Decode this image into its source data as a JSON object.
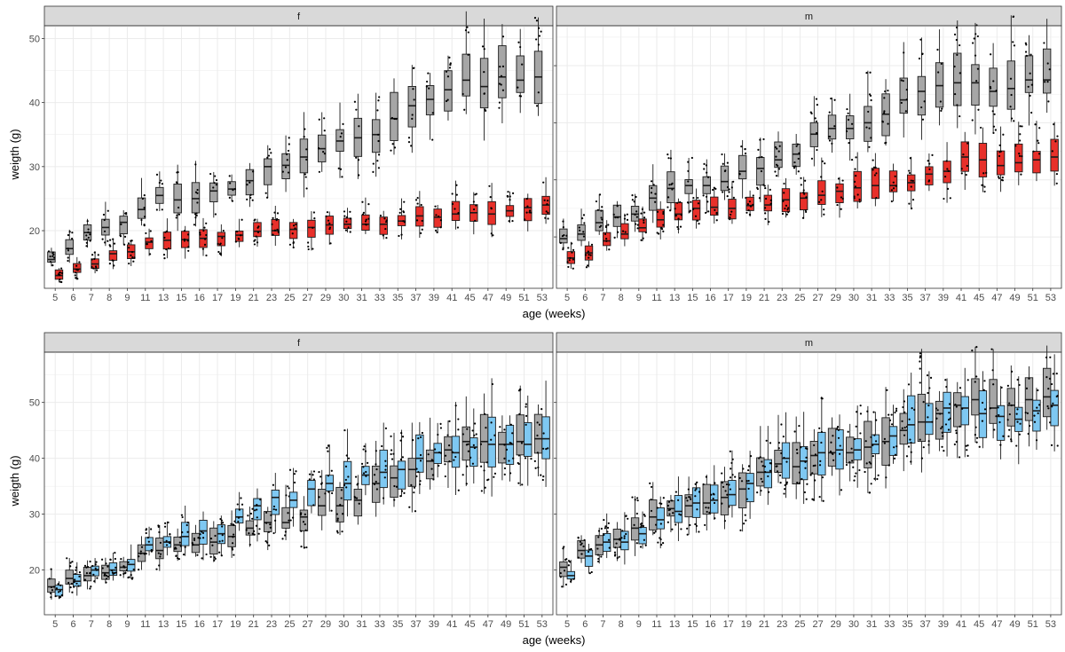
{
  "figure": {
    "top": {
      "xlabel": "age (weeks)",
      "ylabel": "weigth (g)"
    },
    "bottom": {
      "xlabel": "age (weeks)",
      "ylabel": "weigth (g)"
    }
  },
  "colors": {
    "grey_box": "#a6a6a6",
    "red_box": "#e8302a",
    "blue_box": "#7ec8f2",
    "strip": "#d9d9d9",
    "grid": "#ebebeb"
  },
  "chart_data": [
    {
      "type": "boxplot",
      "row": "top",
      "facet": "f",
      "xlabel": "age (weeks)",
      "ylabel": "weigth (g)",
      "ylim": [
        11,
        52
      ],
      "yticks": [
        20,
        30,
        40,
        50
      ],
      "categories": [
        "5",
        "6",
        "7",
        "8",
        "9",
        "11",
        "13",
        "15",
        "16",
        "17",
        "19",
        "21",
        "23",
        "25",
        "27",
        "29",
        "30",
        "31",
        "33",
        "35",
        "37",
        "39",
        "41",
        "45",
        "47",
        "49",
        "51",
        "53"
      ],
      "series": [
        {
          "color": "grey",
          "medians": [
            15.5,
            17.2,
            19.7,
            20.5,
            21.3,
            23.3,
            25.5,
            24.8,
            25.0,
            26.2,
            26.5,
            27.8,
            30.0,
            30.2,
            31.5,
            32.8,
            34.0,
            34.5,
            35.0,
            37.5,
            39.5,
            40.5,
            42.0,
            43.5,
            42.5,
            44.0,
            43.5,
            44.0
          ]
        },
        {
          "color": "red",
          "medians": [
            13.0,
            14.0,
            14.8,
            16.4,
            16.7,
            18.2,
            18.5,
            18.6,
            18.8,
            19.1,
            19.3,
            19.9,
            20.0,
            20.2,
            20.5,
            20.9,
            21.0,
            21.0,
            21.0,
            21.5,
            22.3,
            22.1,
            22.6,
            22.8,
            22.6,
            23.1,
            23.6,
            24.0
          ]
        }
      ]
    },
    {
      "type": "boxplot",
      "row": "top",
      "facet": "m",
      "xlabel": "age (weeks)",
      "ylabel": "weigth (g)",
      "ylim": [
        11,
        57
      ],
      "yticks": [
        20,
        30,
        40,
        50
      ],
      "categories": [
        "5",
        "6",
        "7",
        "8",
        "9",
        "11",
        "13",
        "15",
        "16",
        "17",
        "19",
        "21",
        "23",
        "25",
        "27",
        "29",
        "30",
        "31",
        "33",
        "35",
        "37",
        "39",
        "41",
        "45",
        "47",
        "49",
        "51",
        "53"
      ],
      "series": [
        {
          "color": "grey",
          "medians": [
            19.7,
            20.5,
            22.5,
            23.5,
            24.0,
            26.8,
            28.5,
            29.0,
            29.0,
            29.7,
            31.5,
            32.0,
            33.5,
            34.5,
            38.0,
            39.0,
            39.0,
            40.0,
            41.5,
            44.0,
            45.5,
            46.5,
            47.0,
            47.0,
            45.5,
            46.0,
            47.5,
            47.5
          ]
        },
        {
          "color": "red",
          "medians": [
            16.3,
            17.2,
            19.3,
            20.5,
            21.6,
            23.0,
            24.0,
            25.0,
            25.2,
            25.0,
            25.5,
            25.6,
            26.5,
            26.8,
            27.3,
            28.0,
            28.6,
            29.0,
            29.0,
            29.5,
            31.0,
            31.5,
            34.0,
            33.5,
            32.5,
            33.0,
            33.5,
            34.0
          ]
        }
      ]
    },
    {
      "type": "boxplot",
      "row": "bottom",
      "facet": "f",
      "xlabel": "age (weeks)",
      "ylabel": "weigth (g)",
      "ylim": [
        12,
        59
      ],
      "yticks": [
        20,
        30,
        40,
        50
      ],
      "categories": [
        "5",
        "6",
        "7",
        "8",
        "9",
        "11",
        "13",
        "15",
        "16",
        "17",
        "19",
        "21",
        "23",
        "25",
        "27",
        "29",
        "30",
        "31",
        "33",
        "35",
        "37",
        "39",
        "41",
        "45",
        "47",
        "49",
        "51",
        "53"
      ],
      "series": [
        {
          "color": "grey",
          "medians": [
            17.0,
            18.5,
            19.0,
            19.5,
            20.5,
            23.0,
            23.5,
            24.5,
            24.5,
            25.0,
            26.0,
            27.5,
            28.5,
            28.5,
            29.5,
            31.5,
            31.5,
            32.5,
            35.5,
            36.5,
            38.0,
            39.5,
            41.5,
            43.0,
            43.0,
            42.5,
            43.0,
            43.5
          ]
        },
        {
          "color": "blue",
          "medians": [
            16.5,
            18.0,
            20.0,
            20.0,
            21.0,
            24.5,
            25.0,
            26.0,
            27.0,
            26.5,
            29.5,
            31.5,
            33.0,
            32.5,
            34.5,
            35.5,
            35.5,
            37.0,
            37.5,
            38.0,
            40.0,
            41.0,
            41.0,
            42.0,
            42.5,
            42.5,
            42.5,
            43.5
          ]
        }
      ]
    },
    {
      "type": "boxplot",
      "row": "bottom",
      "facet": "m",
      "xlabel": "age (weeks)",
      "ylabel": "weigth (g)",
      "ylim": [
        12,
        59
      ],
      "yticks": [
        20,
        30,
        40,
        50
      ],
      "categories": [
        "5",
        "6",
        "7",
        "8",
        "9",
        "11",
        "13",
        "15",
        "16",
        "17",
        "19",
        "21",
        "23",
        "25",
        "27",
        "29",
        "30",
        "31",
        "33",
        "35",
        "37",
        "39",
        "41",
        "45",
        "47",
        "49",
        "51",
        "53"
      ],
      "series": [
        {
          "color": "grey",
          "medians": [
            20.5,
            23.5,
            24.5,
            25.5,
            27.5,
            29.5,
            31.0,
            31.5,
            32.0,
            33.0,
            34.5,
            37.5,
            39.0,
            38.5,
            40.5,
            41.0,
            41.0,
            42.0,
            43.0,
            45.0,
            46.5,
            48.0,
            49.5,
            50.5,
            49.0,
            49.5,
            50.5,
            51.0
          ]
        },
        {
          "color": "blue",
          "medians": [
            19.0,
            22.5,
            25.0,
            25.0,
            26.5,
            29.0,
            30.5,
            32.0,
            32.5,
            33.5,
            35.5,
            37.5,
            40.0,
            39.5,
            41.0,
            41.5,
            41.5,
            42.5,
            44.0,
            46.0,
            46.5,
            49.0,
            49.0,
            48.0,
            47.5,
            47.0,
            48.5,
            49.5
          ]
        }
      ]
    }
  ]
}
